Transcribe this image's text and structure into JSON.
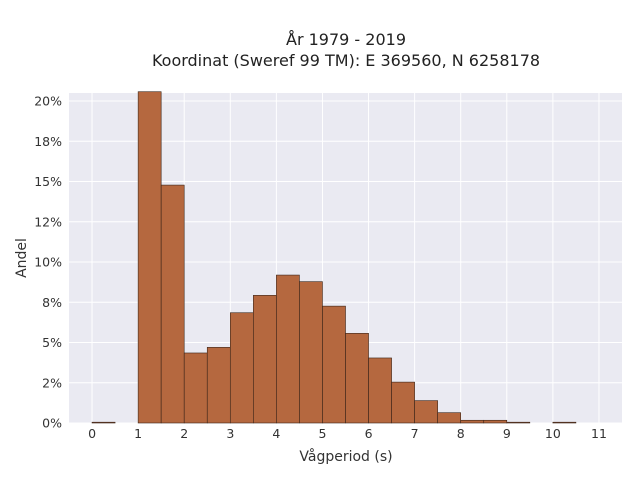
{
  "chart_data": {
    "type": "bar",
    "title": "År 1979 - 2019",
    "subtitle": "Koordinat (Sweref 99 TM): E 369560, N 6258178",
    "xlabel": "Vågperiod (s)",
    "ylabel": "Andel",
    "bin_width": 0.5,
    "xlim": [
      -0.5,
      11.5
    ],
    "ylim": [
      0,
      0.205
    ],
    "x_ticks": [
      0,
      1,
      2,
      3,
      4,
      5,
      6,
      7,
      8,
      9,
      10,
      11
    ],
    "x_tick_labels": [
      "0",
      "1",
      "2",
      "3",
      "4",
      "5",
      "6",
      "7",
      "8",
      "9",
      "10",
      "11"
    ],
    "y_ticks": [
      0,
      0.025,
      0.05,
      0.075,
      0.1,
      0.125,
      0.15,
      0.175,
      0.2
    ],
    "y_tick_labels": [
      "0%",
      "2%",
      "5%",
      "8%",
      "10%",
      "12%",
      "15%",
      "18%",
      "20%"
    ],
    "grid": true,
    "bar_color": "#b5683f",
    "bar_edge_color": "#3a2418",
    "bins": [
      {
        "x0": 0.0,
        "x1": 0.5,
        "value": 0.0005
      },
      {
        "x0": 1.0,
        "x1": 1.5,
        "value": 0.2058
      },
      {
        "x0": 1.5,
        "x1": 2.0,
        "value": 0.1478
      },
      {
        "x0": 2.0,
        "x1": 2.5,
        "value": 0.0435
      },
      {
        "x0": 2.5,
        "x1": 3.0,
        "value": 0.047
      },
      {
        "x0": 3.0,
        "x1": 3.5,
        "value": 0.0685
      },
      {
        "x0": 3.5,
        "x1": 4.0,
        "value": 0.0793
      },
      {
        "x0": 4.0,
        "x1": 4.5,
        "value": 0.0919
      },
      {
        "x0": 4.5,
        "x1": 5.0,
        "value": 0.0878
      },
      {
        "x0": 5.0,
        "x1": 5.5,
        "value": 0.0726
      },
      {
        "x0": 5.5,
        "x1": 6.0,
        "value": 0.0557
      },
      {
        "x0": 6.0,
        "x1": 6.5,
        "value": 0.0404
      },
      {
        "x0": 6.5,
        "x1": 7.0,
        "value": 0.0254
      },
      {
        "x0": 7.0,
        "x1": 7.5,
        "value": 0.0139
      },
      {
        "x0": 7.5,
        "x1": 8.0,
        "value": 0.0064
      },
      {
        "x0": 8.0,
        "x1": 8.5,
        "value": 0.0017
      },
      {
        "x0": 8.5,
        "x1": 9.0,
        "value": 0.0017
      },
      {
        "x0": 9.0,
        "x1": 9.5,
        "value": 0.0005
      },
      {
        "x0": 10.0,
        "x1": 10.5,
        "value": 0.0005
      }
    ]
  }
}
